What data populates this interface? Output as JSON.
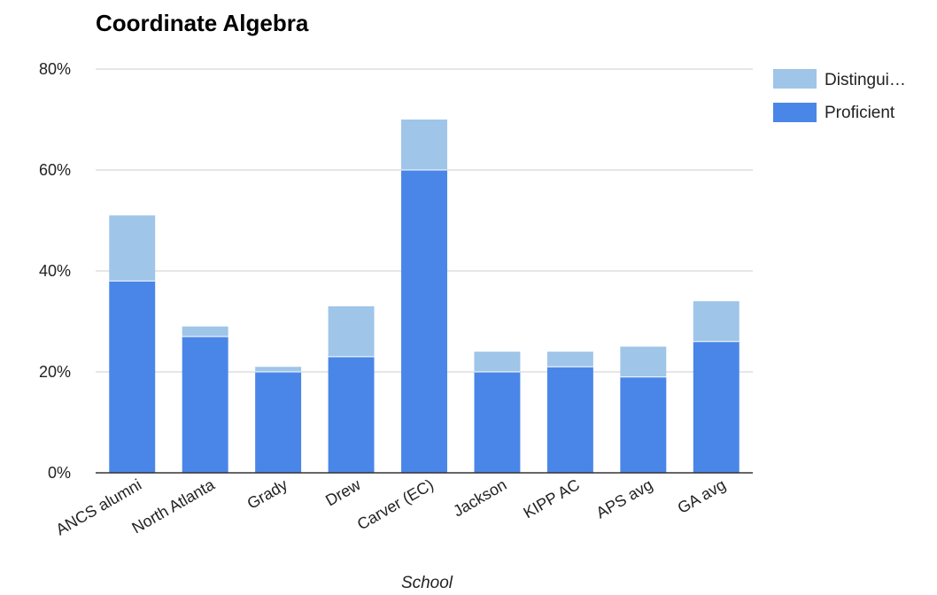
{
  "chart_data": {
    "type": "bar",
    "stacked": true,
    "title": "Coordinate Algebra",
    "xlabel": "School",
    "ylabel": "",
    "ylim": [
      0,
      80
    ],
    "yticks": [
      "0%",
      "20%",
      "40%",
      "60%",
      "80%"
    ],
    "grid": true,
    "legend_position": "right",
    "categories": [
      "ANCS alumni",
      "North Atlanta",
      "Grady",
      "Drew",
      "Carver (EC)",
      "Jackson",
      "KIPP AC",
      "APS avg",
      "GA avg"
    ],
    "series": [
      {
        "name": "Proficient",
        "color": "#4a86e8",
        "values": [
          38,
          27,
          20,
          23,
          60,
          20,
          21,
          19,
          26
        ]
      },
      {
        "name": "Distingui…",
        "color": "#9fc5e8",
        "values": [
          13,
          2,
          1,
          10,
          10,
          4,
          3,
          6,
          8
        ]
      }
    ]
  }
}
